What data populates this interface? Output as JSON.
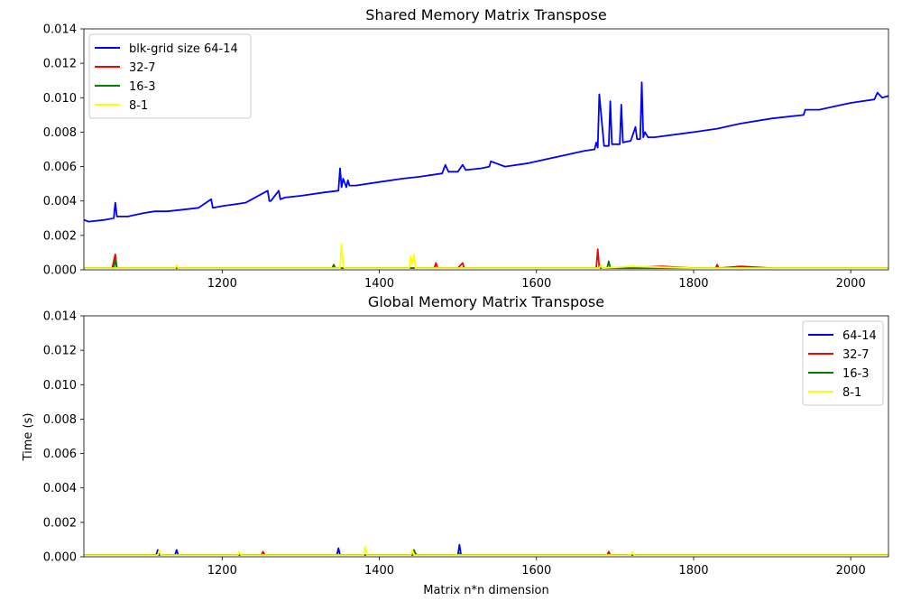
{
  "chart_data": [
    {
      "type": "line",
      "title": "Shared Memory Matrix Transpose",
      "xlabel": "",
      "ylabel": "",
      "xlim": [
        1024,
        2048
      ],
      "ylim": [
        0,
        0.014
      ],
      "xticks": [
        1200,
        1400,
        1600,
        1800,
        2000
      ],
      "yticks": [
        "0.000",
        "0.002",
        "0.004",
        "0.006",
        "0.008",
        "0.010",
        "0.012",
        "0.014"
      ],
      "grid": false,
      "legend_position": "top-left",
      "series": [
        {
          "name": "blk-grid size 64-14",
          "color": "#0000ff",
          "x": [
            1024,
            1030,
            1050,
            1062,
            1064,
            1066,
            1080,
            1100,
            1114,
            1130,
            1150,
            1170,
            1186,
            1188,
            1200,
            1230,
            1258,
            1260,
            1262,
            1272,
            1274,
            1280,
            1300,
            1330,
            1348,
            1350,
            1352,
            1354,
            1358,
            1360,
            1362,
            1370,
            1400,
            1430,
            1450,
            1480,
            1484,
            1488,
            1500,
            1506,
            1510,
            1530,
            1540,
            1542,
            1560,
            1590,
            1620,
            1630,
            1650,
            1660,
            1674,
            1676,
            1678,
            1680,
            1686,
            1692,
            1694,
            1696,
            1706,
            1708,
            1710,
            1720,
            1726,
            1728,
            1732,
            1734,
            1736,
            1738,
            1742,
            1750,
            1800,
            1830,
            1850,
            1860,
            1900,
            1940,
            1942,
            1960,
            1980,
            2000,
            2030,
            2034,
            2040,
            2048
          ],
          "y": [
            0.0029,
            0.0028,
            0.0029,
            0.003,
            0.0039,
            0.0031,
            0.0031,
            0.0033,
            0.0034,
            0.0034,
            0.0035,
            0.0036,
            0.0041,
            0.0036,
            0.0037,
            0.0039,
            0.0046,
            0.004,
            0.004,
            0.0046,
            0.0041,
            0.0042,
            0.0043,
            0.0045,
            0.0046,
            0.0059,
            0.0048,
            0.0053,
            0.0048,
            0.0052,
            0.0049,
            0.0049,
            0.0051,
            0.0053,
            0.0054,
            0.0056,
            0.0061,
            0.0057,
            0.0057,
            0.0061,
            0.0058,
            0.0059,
            0.006,
            0.0063,
            0.006,
            0.0062,
            0.0065,
            0.0066,
            0.0068,
            0.0069,
            0.007,
            0.0074,
            0.0071,
            0.0102,
            0.0072,
            0.0072,
            0.0098,
            0.0073,
            0.0073,
            0.0096,
            0.0074,
            0.0075,
            0.0083,
            0.0076,
            0.0076,
            0.0109,
            0.0077,
            0.008,
            0.0077,
            0.0077,
            0.008,
            0.0082,
            0.0084,
            0.0085,
            0.0088,
            0.009,
            0.0093,
            0.0093,
            0.0095,
            0.0097,
            0.0099,
            0.0103,
            0.01,
            0.0101
          ]
        },
        {
          "name": "32-7",
          "color": "#ff0000",
          "x": [
            1024,
            1060,
            1064,
            1066,
            1090,
            1120,
            1150,
            1180,
            1210,
            1240,
            1300,
            1350,
            1400,
            1450,
            1470,
            1472,
            1474,
            1490,
            1500,
            1506,
            1508,
            1540,
            1600,
            1650,
            1676,
            1678,
            1680,
            1700,
            1760,
            1800,
            1828,
            1830,
            1832,
            1860,
            1900,
            1950,
            2000,
            2048
          ],
          "y": [
            0.0001,
            0.0001,
            0.0009,
            0.0001,
            0.0001,
            0.0001,
            0.0001,
            0.0001,
            0.0001,
            0.0001,
            0.0001,
            0.0001,
            0.0001,
            0.0001,
            0.0001,
            0.0004,
            0.0001,
            0.0001,
            0.0001,
            0.0004,
            0.0001,
            0.0001,
            0.0001,
            0.0001,
            0.0001,
            0.0012,
            0.0001,
            0.0001,
            0.0002,
            0.0001,
            0.0001,
            0.0003,
            0.0001,
            0.0002,
            0.0001,
            0.0001,
            0.0001,
            0.0001
          ]
        },
        {
          "name": "16-3",
          "color": "#008000",
          "x": [
            1024,
            1062,
            1064,
            1066,
            1100,
            1200,
            1300,
            1340,
            1342,
            1344,
            1400,
            1500,
            1600,
            1690,
            1692,
            1694,
            1800,
            1900,
            2000,
            2048
          ],
          "y": [
            0.0001,
            0.0001,
            0.0006,
            0.0001,
            0.0001,
            0.0001,
            0.0001,
            0.0001,
            0.0003,
            0.0001,
            0.0001,
            0.0001,
            0.0001,
            0.0001,
            0.0005,
            0.0001,
            0.0001,
            0.0001,
            0.0001,
            0.0001
          ]
        },
        {
          "name": "8-1",
          "color": "#ffff00",
          "x": [
            1024,
            1100,
            1140,
            1142,
            1144,
            1200,
            1300,
            1350,
            1352,
            1354,
            1356,
            1400,
            1438,
            1440,
            1442,
            1444,
            1446,
            1500,
            1600,
            1680,
            1682,
            1684,
            1720,
            1800,
            1900,
            2000,
            2048
          ],
          "y": [
            0.0001,
            0.0001,
            0.0001,
            0.0003,
            0.0001,
            0.0001,
            0.0001,
            0.0001,
            0.0015,
            0.0002,
            0.0001,
            0.0001,
            0.0001,
            0.0008,
            0.0003,
            0.0009,
            0.0001,
            0.0001,
            0.0001,
            0.0001,
            0.0003,
            0.0001,
            0.0002,
            0.0001,
            0.0001,
            0.0001,
            0.0001
          ]
        }
      ]
    },
    {
      "type": "line",
      "title": "Global Memory Matrix Transpose",
      "xlabel": "Matrix n*n dimension",
      "ylabel": "Time (s)",
      "xlim": [
        1024,
        2048
      ],
      "ylim": [
        0,
        0.014
      ],
      "xticks": [
        1200,
        1400,
        1600,
        1800,
        2000
      ],
      "yticks": [
        "0.000",
        "0.002",
        "0.004",
        "0.006",
        "0.008",
        "0.010",
        "0.012",
        "0.014"
      ],
      "grid": false,
      "legend_position": "top-right",
      "series": [
        {
          "name": "64-14",
          "color": "#0000ff",
          "x": [
            1024,
            1100,
            1116,
            1118,
            1120,
            1140,
            1142,
            1144,
            1200,
            1300,
            1346,
            1348,
            1350,
            1400,
            1440,
            1442,
            1444,
            1500,
            1502,
            1504,
            1506,
            1600,
            1700,
            1800,
            1900,
            2000,
            2048
          ],
          "y": [
            0.0001,
            0.0001,
            0.0001,
            0.0004,
            0.0001,
            0.0001,
            0.0004,
            0.0001,
            0.0001,
            0.0001,
            0.0001,
            0.0005,
            0.0001,
            0.0001,
            0.0001,
            0.0003,
            0.0001,
            0.0001,
            0.0007,
            0.0001,
            0.0001,
            0.0001,
            0.0001,
            0.0001,
            0.0001,
            0.0001,
            0.0001
          ]
        },
        {
          "name": "32-7",
          "color": "#ff0000",
          "x": [
            1024,
            1250,
            1252,
            1254,
            1400,
            1690,
            1692,
            1694,
            1800,
            2048
          ],
          "y": [
            0.0001,
            0.0001,
            0.0003,
            0.0001,
            0.0001,
            0.0001,
            0.0003,
            0.0001,
            0.0001,
            0.0001
          ]
        },
        {
          "name": "16-3",
          "color": "#008000",
          "x": [
            1024,
            1440,
            1444,
            1446,
            1448,
            1500,
            1502,
            1504,
            1506,
            2048
          ],
          "y": [
            0.0001,
            0.0001,
            0.0004,
            0.0002,
            0.0001,
            0.0001,
            0.0002,
            0.0001,
            0.0001,
            0.0001
          ]
        },
        {
          "name": "8-1",
          "color": "#ffff00",
          "x": [
            1024,
            1118,
            1120,
            1122,
            1220,
            1222,
            1224,
            1380,
            1382,
            1384,
            1440,
            1442,
            1444,
            1720,
            1722,
            1724,
            2048
          ],
          "y": [
            0.0001,
            0.0001,
            0.0004,
            0.0001,
            0.0001,
            0.0003,
            0.0001,
            0.0001,
            0.0006,
            0.0001,
            0.0001,
            0.0004,
            0.0001,
            0.0001,
            0.0003,
            0.0001,
            0.0001
          ]
        }
      ]
    }
  ]
}
